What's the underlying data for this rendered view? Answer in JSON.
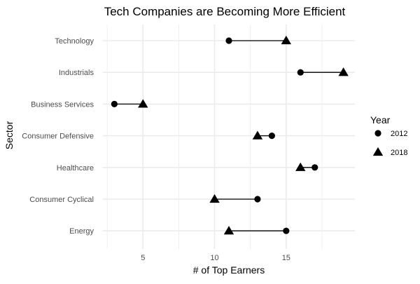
{
  "chart_data": {
    "type": "scatter",
    "title": "Tech Companies are Becoming More Efficient",
    "xlabel": "# of Top Earners",
    "ylabel": "Sector",
    "xlim": [
      2.2,
      19.8
    ],
    "xticks": [
      5,
      10,
      15
    ],
    "grid": true,
    "legend": {
      "title": "Year",
      "position": "right",
      "entries": [
        {
          "label": "2012",
          "shape": "circle"
        },
        {
          "label": "2018",
          "shape": "triangle"
        }
      ]
    },
    "categories": [
      "Technology",
      "Industrials",
      "Business Services",
      "Consumer Defensive",
      "Healthcare",
      "Consumer Cyclical",
      "Energy"
    ],
    "series": [
      {
        "name": "2012",
        "values": [
          11,
          16,
          3,
          14,
          17,
          13,
          15
        ]
      },
      {
        "name": "2018",
        "values": [
          15,
          19,
          5,
          13,
          16,
          10,
          11
        ]
      }
    ],
    "colors": {
      "marker": "#000000",
      "grid": "#ebebeb",
      "text": "#4d4d4d",
      "title": "#000000"
    }
  }
}
